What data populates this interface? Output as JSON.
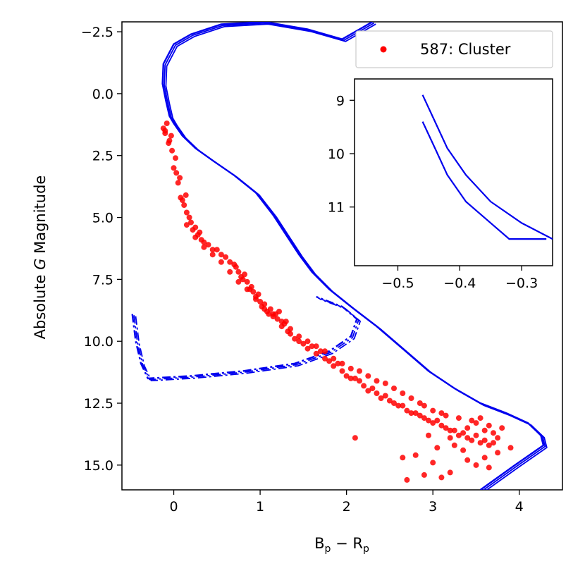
{
  "chart_data": {
    "type": "scatter",
    "xlabel": "B_p − R_p",
    "ylabel": "Absolute G Magnitude",
    "xlim": [
      -0.6,
      4.5
    ],
    "ylim": [
      16.0,
      -2.9
    ],
    "y_inverted": true,
    "xticks": [
      0,
      1,
      2,
      3,
      4
    ],
    "yticks": [
      -2.5,
      0.0,
      2.5,
      5.0,
      7.5,
      10.0,
      12.5,
      15.0
    ],
    "xtick_labels": [
      "0",
      "1",
      "2",
      "3",
      "4"
    ],
    "ytick_labels": [
      "−2.5",
      "0.0",
      "2.5",
      "5.0",
      "7.5",
      "10.0",
      "12.5",
      "15.0"
    ],
    "legend": {
      "placement": "top-right",
      "entries": [
        {
          "label": "587: Cluster",
          "color": "#ff0000"
        }
      ]
    },
    "colors": {
      "points": "#ff0000",
      "isochrone": "#0000ee"
    },
    "series": [
      {
        "kind": "points",
        "color": "#ff0000",
        "points": [
          [
            -0.12,
            1.4
          ],
          [
            -0.1,
            1.6
          ],
          [
            -0.08,
            1.2
          ],
          [
            -0.05,
            1.9
          ],
          [
            -0.03,
            1.7
          ],
          [
            -0.02,
            2.3
          ],
          [
            0.0,
            3.0
          ],
          [
            -0.1,
            1.5
          ],
          [
            -0.06,
            2.0
          ],
          [
            0.02,
            2.6
          ],
          [
            0.03,
            3.2
          ],
          [
            0.05,
            3.6
          ],
          [
            0.07,
            3.4
          ],
          [
            0.08,
            4.2
          ],
          [
            0.1,
            4.3
          ],
          [
            0.12,
            4.5
          ],
          [
            0.14,
            4.1
          ],
          [
            0.15,
            4.8
          ],
          [
            0.18,
            5.0
          ],
          [
            0.2,
            5.2
          ],
          [
            0.22,
            5.5
          ],
          [
            0.25,
            5.4
          ],
          [
            0.28,
            5.7
          ],
          [
            0.3,
            5.6
          ],
          [
            0.32,
            5.9
          ],
          [
            0.35,
            6.0
          ],
          [
            0.4,
            6.1
          ],
          [
            0.45,
            6.3
          ],
          [
            0.5,
            6.3
          ],
          [
            0.55,
            6.5
          ],
          [
            0.6,
            6.6
          ],
          [
            0.65,
            6.8
          ],
          [
            0.7,
            6.9
          ],
          [
            0.72,
            7.0
          ],
          [
            0.75,
            7.2
          ],
          [
            0.78,
            7.4
          ],
          [
            0.8,
            7.5
          ],
          [
            0.82,
            7.3
          ],
          [
            0.85,
            7.6
          ],
          [
            0.88,
            7.9
          ],
          [
            0.9,
            7.8
          ],
          [
            0.92,
            8.0
          ],
          [
            0.95,
            8.2
          ],
          [
            0.98,
            8.1
          ],
          [
            1.0,
            8.4
          ],
          [
            1.02,
            8.6
          ],
          [
            1.05,
            8.5
          ],
          [
            1.08,
            8.8
          ],
          [
            1.1,
            8.9
          ],
          [
            1.12,
            8.7
          ],
          [
            1.15,
            9.0
          ],
          [
            1.18,
            8.9
          ],
          [
            1.2,
            9.1
          ],
          [
            1.22,
            8.8
          ],
          [
            1.25,
            9.4
          ],
          [
            1.28,
            9.3
          ],
          [
            1.3,
            9.2
          ],
          [
            1.32,
            9.6
          ],
          [
            1.35,
            9.7
          ],
          [
            1.4,
            9.9
          ],
          [
            1.45,
            10.0
          ],
          [
            1.5,
            10.1
          ],
          [
            1.55,
            10.3
          ],
          [
            1.6,
            10.2
          ],
          [
            1.65,
            10.5
          ],
          [
            1.7,
            10.4
          ],
          [
            1.75,
            10.7
          ],
          [
            1.8,
            10.8
          ],
          [
            1.85,
            11.0
          ],
          [
            1.9,
            10.9
          ],
          [
            1.95,
            11.2
          ],
          [
            2.0,
            11.4
          ],
          [
            2.05,
            11.5
          ],
          [
            2.1,
            11.5
          ],
          [
            2.15,
            11.6
          ],
          [
            2.2,
            11.8
          ],
          [
            2.25,
            12.0
          ],
          [
            2.3,
            11.9
          ],
          [
            2.35,
            12.1
          ],
          [
            2.4,
            12.3
          ],
          [
            2.45,
            12.2
          ],
          [
            2.5,
            12.4
          ],
          [
            2.55,
            12.5
          ],
          [
            2.6,
            12.6
          ],
          [
            2.65,
            12.6
          ],
          [
            2.7,
            12.8
          ],
          [
            2.75,
            12.9
          ],
          [
            2.8,
            12.9
          ],
          [
            2.85,
            13.0
          ],
          [
            2.9,
            13.1
          ],
          [
            2.95,
            13.2
          ],
          [
            3.0,
            13.3
          ],
          [
            3.05,
            13.2
          ],
          [
            3.1,
            13.4
          ],
          [
            3.15,
            13.5
          ],
          [
            3.2,
            13.6
          ],
          [
            3.25,
            13.6
          ],
          [
            3.3,
            13.8
          ],
          [
            3.35,
            13.7
          ],
          [
            3.4,
            13.9
          ],
          [
            3.45,
            14.0
          ],
          [
            3.5,
            13.8
          ],
          [
            3.55,
            14.1
          ],
          [
            3.6,
            14.0
          ],
          [
            3.65,
            14.2
          ],
          [
            3.7,
            14.1
          ],
          [
            3.75,
            13.9
          ],
          [
            3.4,
            13.5
          ],
          [
            3.2,
            13.9
          ],
          [
            3.0,
            12.8
          ],
          [
            2.9,
            12.6
          ],
          [
            3.1,
            12.9
          ],
          [
            3.3,
            13.1
          ],
          [
            3.5,
            13.3
          ],
          [
            3.6,
            13.6
          ],
          [
            3.7,
            13.7
          ],
          [
            3.8,
            13.5
          ],
          [
            3.25,
            14.2
          ],
          [
            3.35,
            14.4
          ],
          [
            3.05,
            14.3
          ],
          [
            2.95,
            13.8
          ],
          [
            3.15,
            13.0
          ],
          [
            3.45,
            13.2
          ],
          [
            3.55,
            13.1
          ],
          [
            3.65,
            13.4
          ],
          [
            2.85,
            12.5
          ],
          [
            2.75,
            12.3
          ],
          [
            2.65,
            12.1
          ],
          [
            2.55,
            11.9
          ],
          [
            2.45,
            11.7
          ],
          [
            2.35,
            11.6
          ],
          [
            2.25,
            11.4
          ],
          [
            2.15,
            11.2
          ],
          [
            2.05,
            11.1
          ],
          [
            1.95,
            10.9
          ],
          [
            1.85,
            10.7
          ],
          [
            1.75,
            10.4
          ],
          [
            1.65,
            10.2
          ],
          [
            1.55,
            10.0
          ],
          [
            1.45,
            9.8
          ],
          [
            1.35,
            9.5
          ],
          [
            1.25,
            9.2
          ],
          [
            1.15,
            8.9
          ],
          [
            1.05,
            8.7
          ],
          [
            0.95,
            8.3
          ],
          [
            0.85,
            7.9
          ],
          [
            0.75,
            7.6
          ],
          [
            0.65,
            7.2
          ],
          [
            0.55,
            6.8
          ],
          [
            0.45,
            6.5
          ],
          [
            0.35,
            6.2
          ],
          [
            0.25,
            5.8
          ],
          [
            0.15,
            5.3
          ],
          [
            2.1,
            13.9
          ],
          [
            2.7,
            15.6
          ],
          [
            2.9,
            15.4
          ],
          [
            3.1,
            15.5
          ],
          [
            3.2,
            15.3
          ],
          [
            2.8,
            14.6
          ],
          [
            3.0,
            14.9
          ],
          [
            3.4,
            14.8
          ],
          [
            3.6,
            14.7
          ],
          [
            3.75,
            14.5
          ],
          [
            3.9,
            14.3
          ],
          [
            3.5,
            15.0
          ],
          [
            3.65,
            15.1
          ],
          [
            2.65,
            14.7
          ]
        ]
      },
      {
        "kind": "isochrone-upper",
        "color": "#0000ee",
        "points": [
          [
            2.3,
            -2.9
          ],
          [
            1.95,
            -2.2
          ],
          [
            1.55,
            -2.6
          ],
          [
            1.05,
            -2.9
          ],
          [
            0.55,
            -2.8
          ],
          [
            0.2,
            -2.4
          ],
          [
            0.0,
            -2.0
          ],
          [
            -0.12,
            -1.2
          ],
          [
            -0.13,
            -0.4
          ],
          [
            -0.09,
            0.3
          ],
          [
            -0.05,
            0.9
          ],
          [
            0.0,
            1.2
          ],
          [
            0.1,
            1.7
          ],
          [
            0.25,
            2.2
          ],
          [
            0.45,
            2.7
          ],
          [
            0.7,
            3.3
          ],
          [
            0.95,
            4.0
          ],
          [
            1.15,
            4.9
          ],
          [
            1.3,
            5.7
          ],
          [
            1.45,
            6.5
          ],
          [
            1.6,
            7.2
          ],
          [
            1.8,
            7.9
          ],
          [
            2.05,
            8.6
          ],
          [
            2.35,
            9.4
          ],
          [
            2.65,
            10.3
          ],
          [
            2.95,
            11.2
          ],
          [
            3.25,
            11.9
          ],
          [
            3.55,
            12.5
          ],
          [
            3.85,
            12.9
          ],
          [
            4.1,
            13.3
          ],
          [
            4.25,
            13.8
          ],
          [
            4.28,
            14.2
          ],
          [
            3.95,
            15.0
          ],
          [
            3.55,
            16.0
          ]
        ]
      },
      {
        "kind": "isochrone-lower",
        "color": "#0000ee",
        "points": [
          [
            -0.48,
            8.9
          ],
          [
            -0.44,
            10.0
          ],
          [
            -0.38,
            10.9
          ],
          [
            -0.3,
            11.5
          ],
          [
            0.2,
            11.4
          ],
          [
            0.8,
            11.2
          ],
          [
            1.4,
            10.9
          ],
          [
            1.8,
            10.4
          ],
          [
            2.05,
            9.8
          ],
          [
            2.12,
            9.1
          ],
          [
            1.95,
            8.6
          ],
          [
            1.65,
            8.2
          ]
        ]
      }
    ],
    "inset": {
      "xlim": [
        -0.57,
        -0.25
      ],
      "ylim": [
        12.1,
        8.6
      ],
      "xticks": [
        -0.5,
        -0.4,
        -0.3
      ],
      "yticks": [
        9,
        10,
        11
      ],
      "xtick_labels": [
        "−0.5",
        "−0.4",
        "−0.3"
      ],
      "ytick_labels": [
        "9",
        "10",
        "11"
      ],
      "series": [
        {
          "points": [
            [
              -0.46,
              8.9
            ],
            [
              -0.44,
              9.4
            ],
            [
              -0.42,
              9.9
            ],
            [
              -0.39,
              10.4
            ],
            [
              -0.35,
              10.9
            ],
            [
              -0.3,
              11.3
            ],
            [
              -0.25,
              11.6
            ]
          ]
        },
        {
          "points": [
            [
              -0.46,
              9.4
            ],
            [
              -0.44,
              9.9
            ],
            [
              -0.42,
              10.4
            ],
            [
              -0.39,
              10.9
            ],
            [
              -0.35,
              11.3
            ],
            [
              -0.32,
              11.6
            ],
            [
              -0.26,
              11.6
            ]
          ]
        }
      ]
    }
  }
}
